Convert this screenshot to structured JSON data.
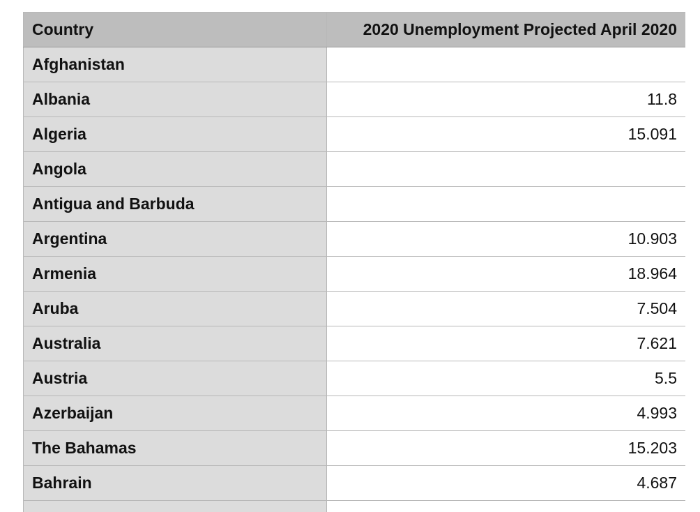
{
  "table": {
    "headers": [
      "Country",
      "2020 Unemployment Projected April 2020"
    ],
    "rows": [
      {
        "country": "Afghanistan",
        "value": ""
      },
      {
        "country": "Albania",
        "value": "11.8"
      },
      {
        "country": "Algeria",
        "value": "15.091"
      },
      {
        "country": "Angola",
        "value": ""
      },
      {
        "country": "Antigua and Barbuda",
        "value": ""
      },
      {
        "country": "Argentina",
        "value": "10.903"
      },
      {
        "country": "Armenia",
        "value": "18.964"
      },
      {
        "country": "Aruba",
        "value": "7.504"
      },
      {
        "country": "Australia",
        "value": "7.621"
      },
      {
        "country": "Austria",
        "value": "5.5"
      },
      {
        "country": "Azerbaijan",
        "value": "4.993"
      },
      {
        "country": "The Bahamas",
        "value": "15.203"
      },
      {
        "country": "Bahrain",
        "value": "4.687"
      },
      {
        "country": "",
        "value": ""
      }
    ]
  }
}
